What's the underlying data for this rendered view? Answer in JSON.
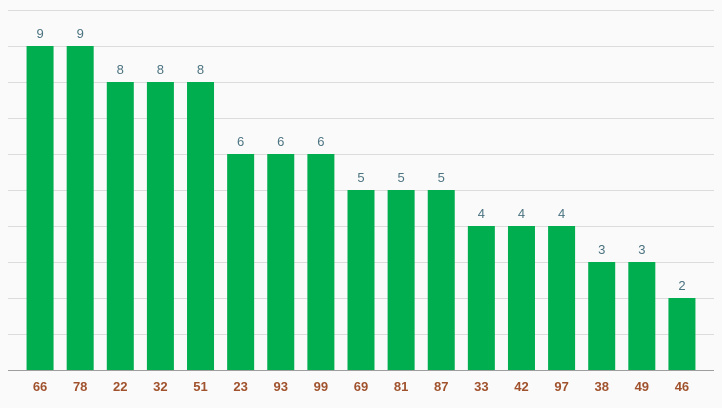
{
  "chart_data": {
    "type": "bar",
    "title": "",
    "xlabel": "",
    "ylabel": "",
    "categories": [
      "66",
      "78",
      "22",
      "32",
      "51",
      "23",
      "93",
      "99",
      "69",
      "81",
      "87",
      "33",
      "42",
      "97",
      "38",
      "49",
      "46"
    ],
    "values": [
      9,
      9,
      8,
      8,
      8,
      6,
      6,
      6,
      5,
      5,
      5,
      4,
      4,
      4,
      3,
      3,
      2
    ],
    "ylim": [
      0,
      10
    ],
    "grid": true,
    "gridline_step": 1,
    "legend": "none",
    "data_labels": true
  },
  "colors": {
    "bar": "#00ad4f",
    "value_label": "#4b7380",
    "category_label": "#a0522d",
    "background": "#fafafa"
  }
}
